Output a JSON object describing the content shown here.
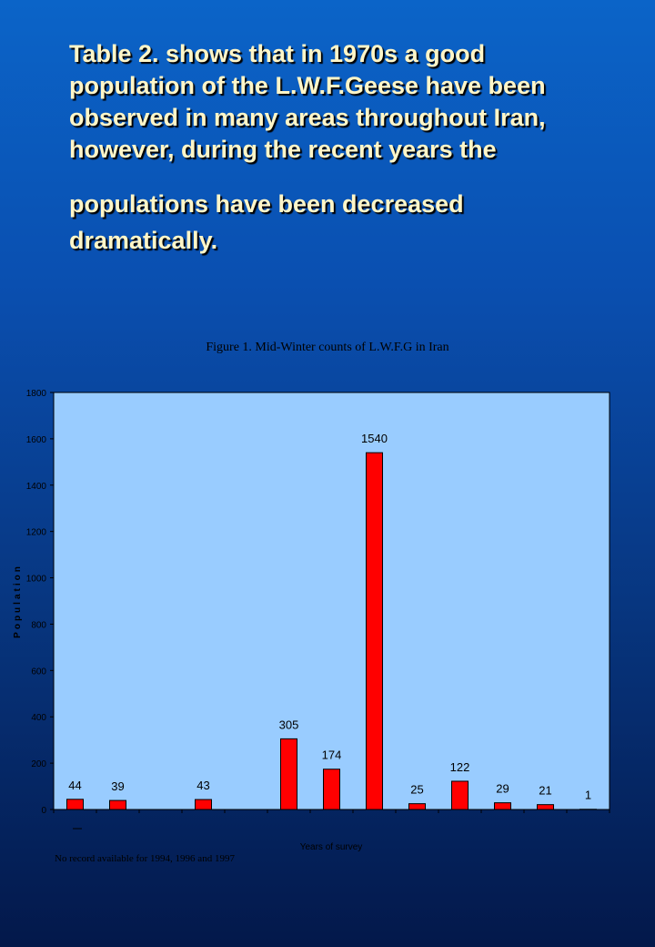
{
  "slide": {
    "paragraph_1": "Table 2. shows that in 1970s  a good population of the L.W.F.Geese have been observed in many areas throughout  Iran, however, during the recent years the",
    "paragraph_2": "populations  have been decreased dramatically."
  },
  "chart_data": {
    "type": "bar",
    "title": "Figure 1. Mid-Winter counts of L.W.F.G in Iran",
    "xlabel": "Years of survey",
    "ylabel": "Population",
    "ylim": [
      0,
      1800
    ],
    "yticks": [
      0,
      200,
      400,
      600,
      800,
      1000,
      1200,
      1400,
      1600,
      1800
    ],
    "values": [
      44,
      39,
      null,
      43,
      null,
      305,
      174,
      1540,
      25,
      122,
      29,
      21,
      1
    ],
    "note": "No record available for 1994, 1996 and 1997",
    "bar_color": "#ff0000",
    "plot_background": "#99ccff",
    "grid": false
  }
}
